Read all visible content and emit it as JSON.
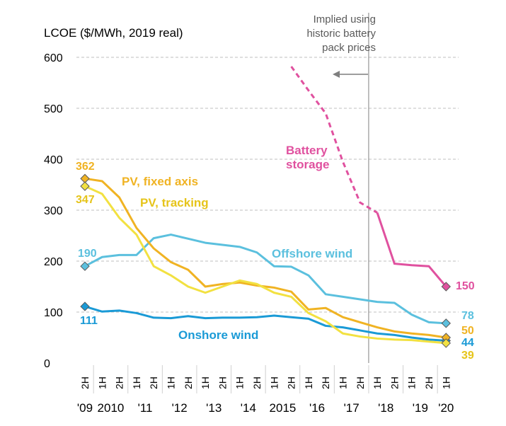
{
  "chart_data": {
    "type": "line",
    "ylabel": "LCOE ($/MWh, 2019 real)",
    "ylim": [
      0,
      600
    ],
    "yticks": [
      0,
      100,
      200,
      300,
      400,
      500,
      600
    ],
    "grid": true,
    "categories": [
      "2H",
      "1H",
      "2H",
      "1H",
      "2H",
      "1H",
      "2H",
      "1H",
      "2H",
      "1H",
      "2H",
      "1H",
      "2H",
      "1H",
      "2H",
      "1H",
      "2H",
      "1H",
      "2H",
      "1H",
      "2H",
      "1H"
    ],
    "year_labels": [
      {
        "label": "'09",
        "from": 0,
        "to": 0
      },
      {
        "label": "2010",
        "from": 1,
        "to": 2
      },
      {
        "label": "'11",
        "from": 3,
        "to": 4
      },
      {
        "label": "'12",
        "from": 5,
        "to": 6
      },
      {
        "label": "'13",
        "from": 7,
        "to": 8
      },
      {
        "label": "'14",
        "from": 9,
        "to": 10
      },
      {
        "label": "2015",
        "from": 11,
        "to": 12
      },
      {
        "label": "'16",
        "from": 13,
        "to": 14
      },
      {
        "label": "'17",
        "from": 15,
        "to": 16
      },
      {
        "label": "'18",
        "from": 17,
        "to": 18
      },
      {
        "label": "'19",
        "from": 19,
        "to": 20
      },
      {
        "label": "'20",
        "from": 21,
        "to": 21
      }
    ],
    "divider_after_index": 16.5,
    "annotation": [
      "Implied using",
      "historic battery",
      "pack prices"
    ],
    "series": [
      {
        "name": "Offshore wind",
        "color": "#5bc0de",
        "values": [
          190,
          208,
          212,
          212,
          245,
          252,
          244,
          236,
          232,
          228,
          217,
          190,
          189,
          172,
          135,
          130,
          125,
          120,
          118,
          95,
          80,
          78
        ],
        "start_label": "190",
        "end_label": "78"
      },
      {
        "name": "Onshore wind",
        "color": "#1a9ad6",
        "values": [
          111,
          101,
          103,
          98,
          89,
          88,
          92,
          88,
          89,
          89,
          90,
          93,
          90,
          87,
          73,
          70,
          64,
          58,
          55,
          50,
          46,
          44
        ],
        "start_label": "111",
        "end_label": "44"
      },
      {
        "name": "PV, fixed axis",
        "color": "#f0b323",
        "values": [
          362,
          357,
          325,
          265,
          225,
          198,
          183,
          150,
          155,
          158,
          152,
          148,
          140,
          105,
          108,
          90,
          80,
          70,
          62,
          58,
          55,
          50
        ],
        "start_label": "362",
        "end_label": "50"
      },
      {
        "name": "PV, tracking",
        "color": "#f2e141",
        "values": [
          347,
          332,
          285,
          252,
          190,
          172,
          150,
          138,
          150,
          162,
          155,
          138,
          130,
          98,
          82,
          58,
          52,
          48,
          46,
          45,
          42,
          39
        ],
        "start_label": "347",
        "end_label": "39"
      },
      {
        "name": "Battery storage",
        "color": "#e0519f",
        "dashed_until_index": 17,
        "start_index": 12,
        "values": [
          null,
          null,
          null,
          null,
          null,
          null,
          null,
          null,
          null,
          null,
          null,
          null,
          582,
          535,
          490,
          395,
          315,
          295,
          195,
          192,
          190,
          150
        ],
        "end_label": "150"
      }
    ]
  }
}
